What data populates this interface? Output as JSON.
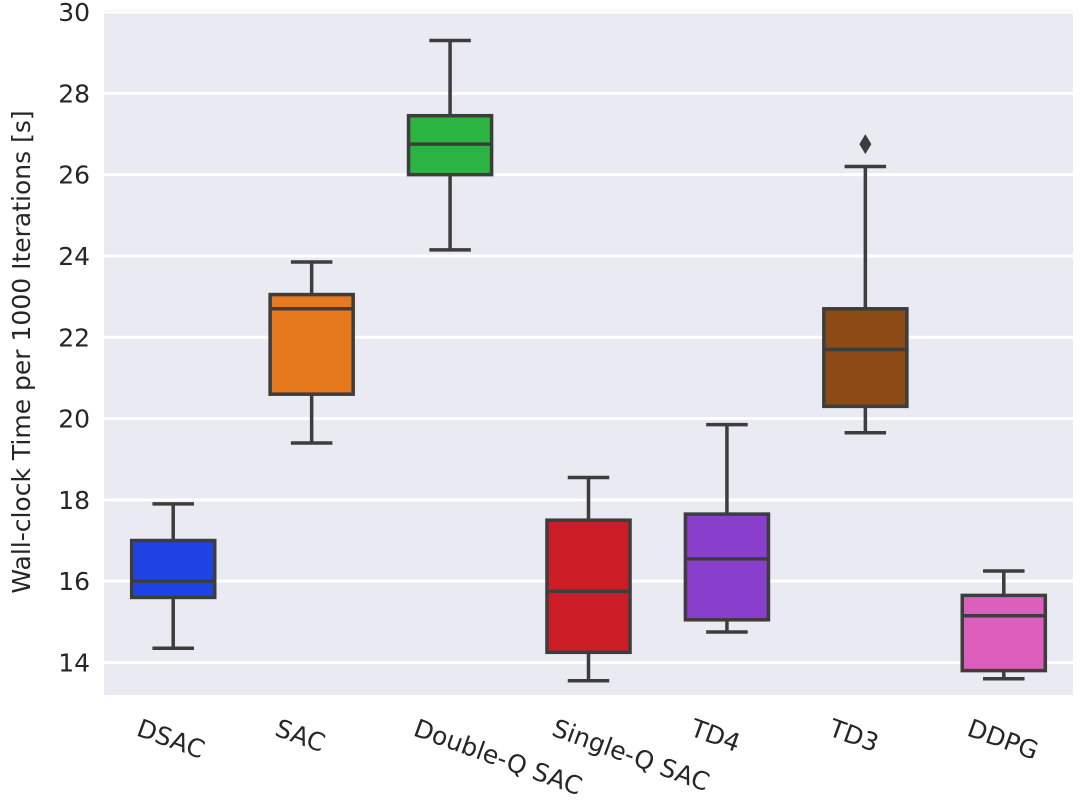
{
  "chart_data": {
    "type": "box",
    "title": "",
    "xlabel": "",
    "ylabel": "Wall-clock Time per 1000 Iterations [s]",
    "ylim": [
      13.2,
      30.05
    ],
    "yticks": [
      14,
      16,
      18,
      20,
      22,
      24,
      26,
      28,
      30
    ],
    "grid": true,
    "categories": [
      "DSAC",
      "SAC",
      "Double-Q SAC",
      "Single-Q SAC",
      "TD4",
      "TD3",
      "DDPG"
    ],
    "series": [
      {
        "name": "DSAC",
        "color": "#1f44e6",
        "whisker_low": 14.35,
        "q1": 15.6,
        "median": 16.0,
        "q3": 17.0,
        "whisker_high": 17.9,
        "outliers": []
      },
      {
        "name": "SAC",
        "color": "#e6781e",
        "whisker_low": 19.4,
        "q1": 20.6,
        "median": 22.7,
        "q3": 23.05,
        "whisker_high": 23.85,
        "outliers": []
      },
      {
        "name": "Double-Q SAC",
        "color": "#2cb442",
        "whisker_low": 24.15,
        "q1": 26.0,
        "median": 26.75,
        "q3": 27.45,
        "whisker_high": 29.3,
        "outliers": []
      },
      {
        "name": "Single-Q SAC",
        "color": "#cc1d26",
        "whisker_low": 13.55,
        "q1": 14.25,
        "median": 15.75,
        "q3": 17.5,
        "whisker_high": 18.55,
        "outliers": []
      },
      {
        "name": "TD4",
        "color": "#8a3fcc",
        "whisker_low": 14.75,
        "q1": 15.05,
        "median": 16.55,
        "q3": 17.65,
        "whisker_high": 19.85,
        "outliers": []
      },
      {
        "name": "TD3",
        "color": "#8c4a14",
        "whisker_low": 19.65,
        "q1": 20.3,
        "median": 21.7,
        "q3": 22.7,
        "whisker_high": 26.2,
        "outliers": [
          26.75
        ]
      },
      {
        "name": "DDPG",
        "color": "#dc5fbd",
        "whisker_low": 13.6,
        "q1": 13.8,
        "median": 15.15,
        "q3": 15.65,
        "whisker_high": 16.25,
        "outliers": []
      }
    ],
    "style": {
      "background": "#eaeaf2",
      "gridline_color": "#ffffff",
      "edge_color": "#3d3d3d"
    }
  }
}
